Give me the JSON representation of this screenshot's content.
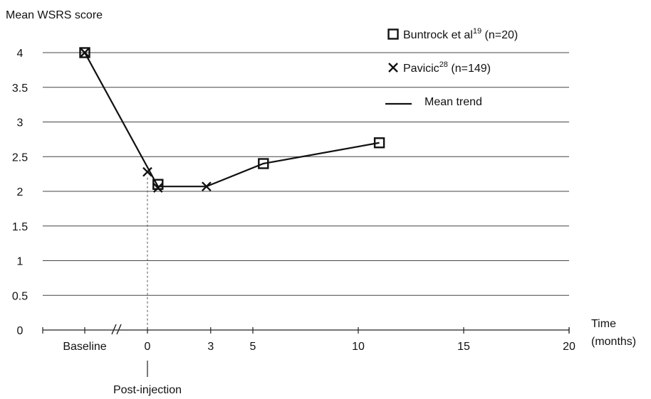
{
  "chart_data": {
    "type": "line",
    "ylabel": "Mean WSRS score",
    "xlabel_line1": "Time",
    "xlabel_line2": "(months)",
    "ylim": [
      0,
      4
    ],
    "yticks": [
      "0",
      "0.5",
      "1",
      "1.5",
      "2",
      "2.5",
      "3",
      "3.5",
      "4"
    ],
    "xlim": [
      0,
      20
    ],
    "baseline_label": "Baseline",
    "xticks": [
      "0",
      "3",
      "5",
      "10",
      "15",
      "20"
    ],
    "post_injection_label": "Post-injection",
    "grid": true,
    "legend_position": "top-right",
    "legend": {
      "buntrock": {
        "name": "Buntrock et al",
        "sup": "19",
        "n": "(n=20)"
      },
      "pavicic": {
        "name": "Pavicic",
        "sup": "28",
        "n": "(n=149)"
      },
      "trend": {
        "name": "Mean trend"
      }
    },
    "series": [
      {
        "name": "Buntrock et al (n=20)",
        "marker": "square",
        "points": [
          [
            "Baseline",
            4.0
          ],
          [
            0.5,
            2.1
          ],
          [
            5.5,
            2.4
          ],
          [
            11,
            2.7
          ]
        ]
      },
      {
        "name": "Pavicic (n=149)",
        "marker": "x",
        "points": [
          [
            "Baseline",
            4.0
          ],
          [
            0,
            2.28
          ],
          [
            0.5,
            2.05
          ],
          [
            2.8,
            2.07
          ]
        ]
      },
      {
        "name": "Mean trend",
        "marker": "line",
        "points": [
          [
            "Baseline",
            4.0
          ],
          [
            0.5,
            2.07
          ],
          [
            2.8,
            2.07
          ],
          [
            5.5,
            2.4
          ],
          [
            11,
            2.7
          ]
        ]
      }
    ],
    "colors": {
      "series": "#111111",
      "grid": "#444444",
      "post_injection_line": "#555555"
    }
  }
}
